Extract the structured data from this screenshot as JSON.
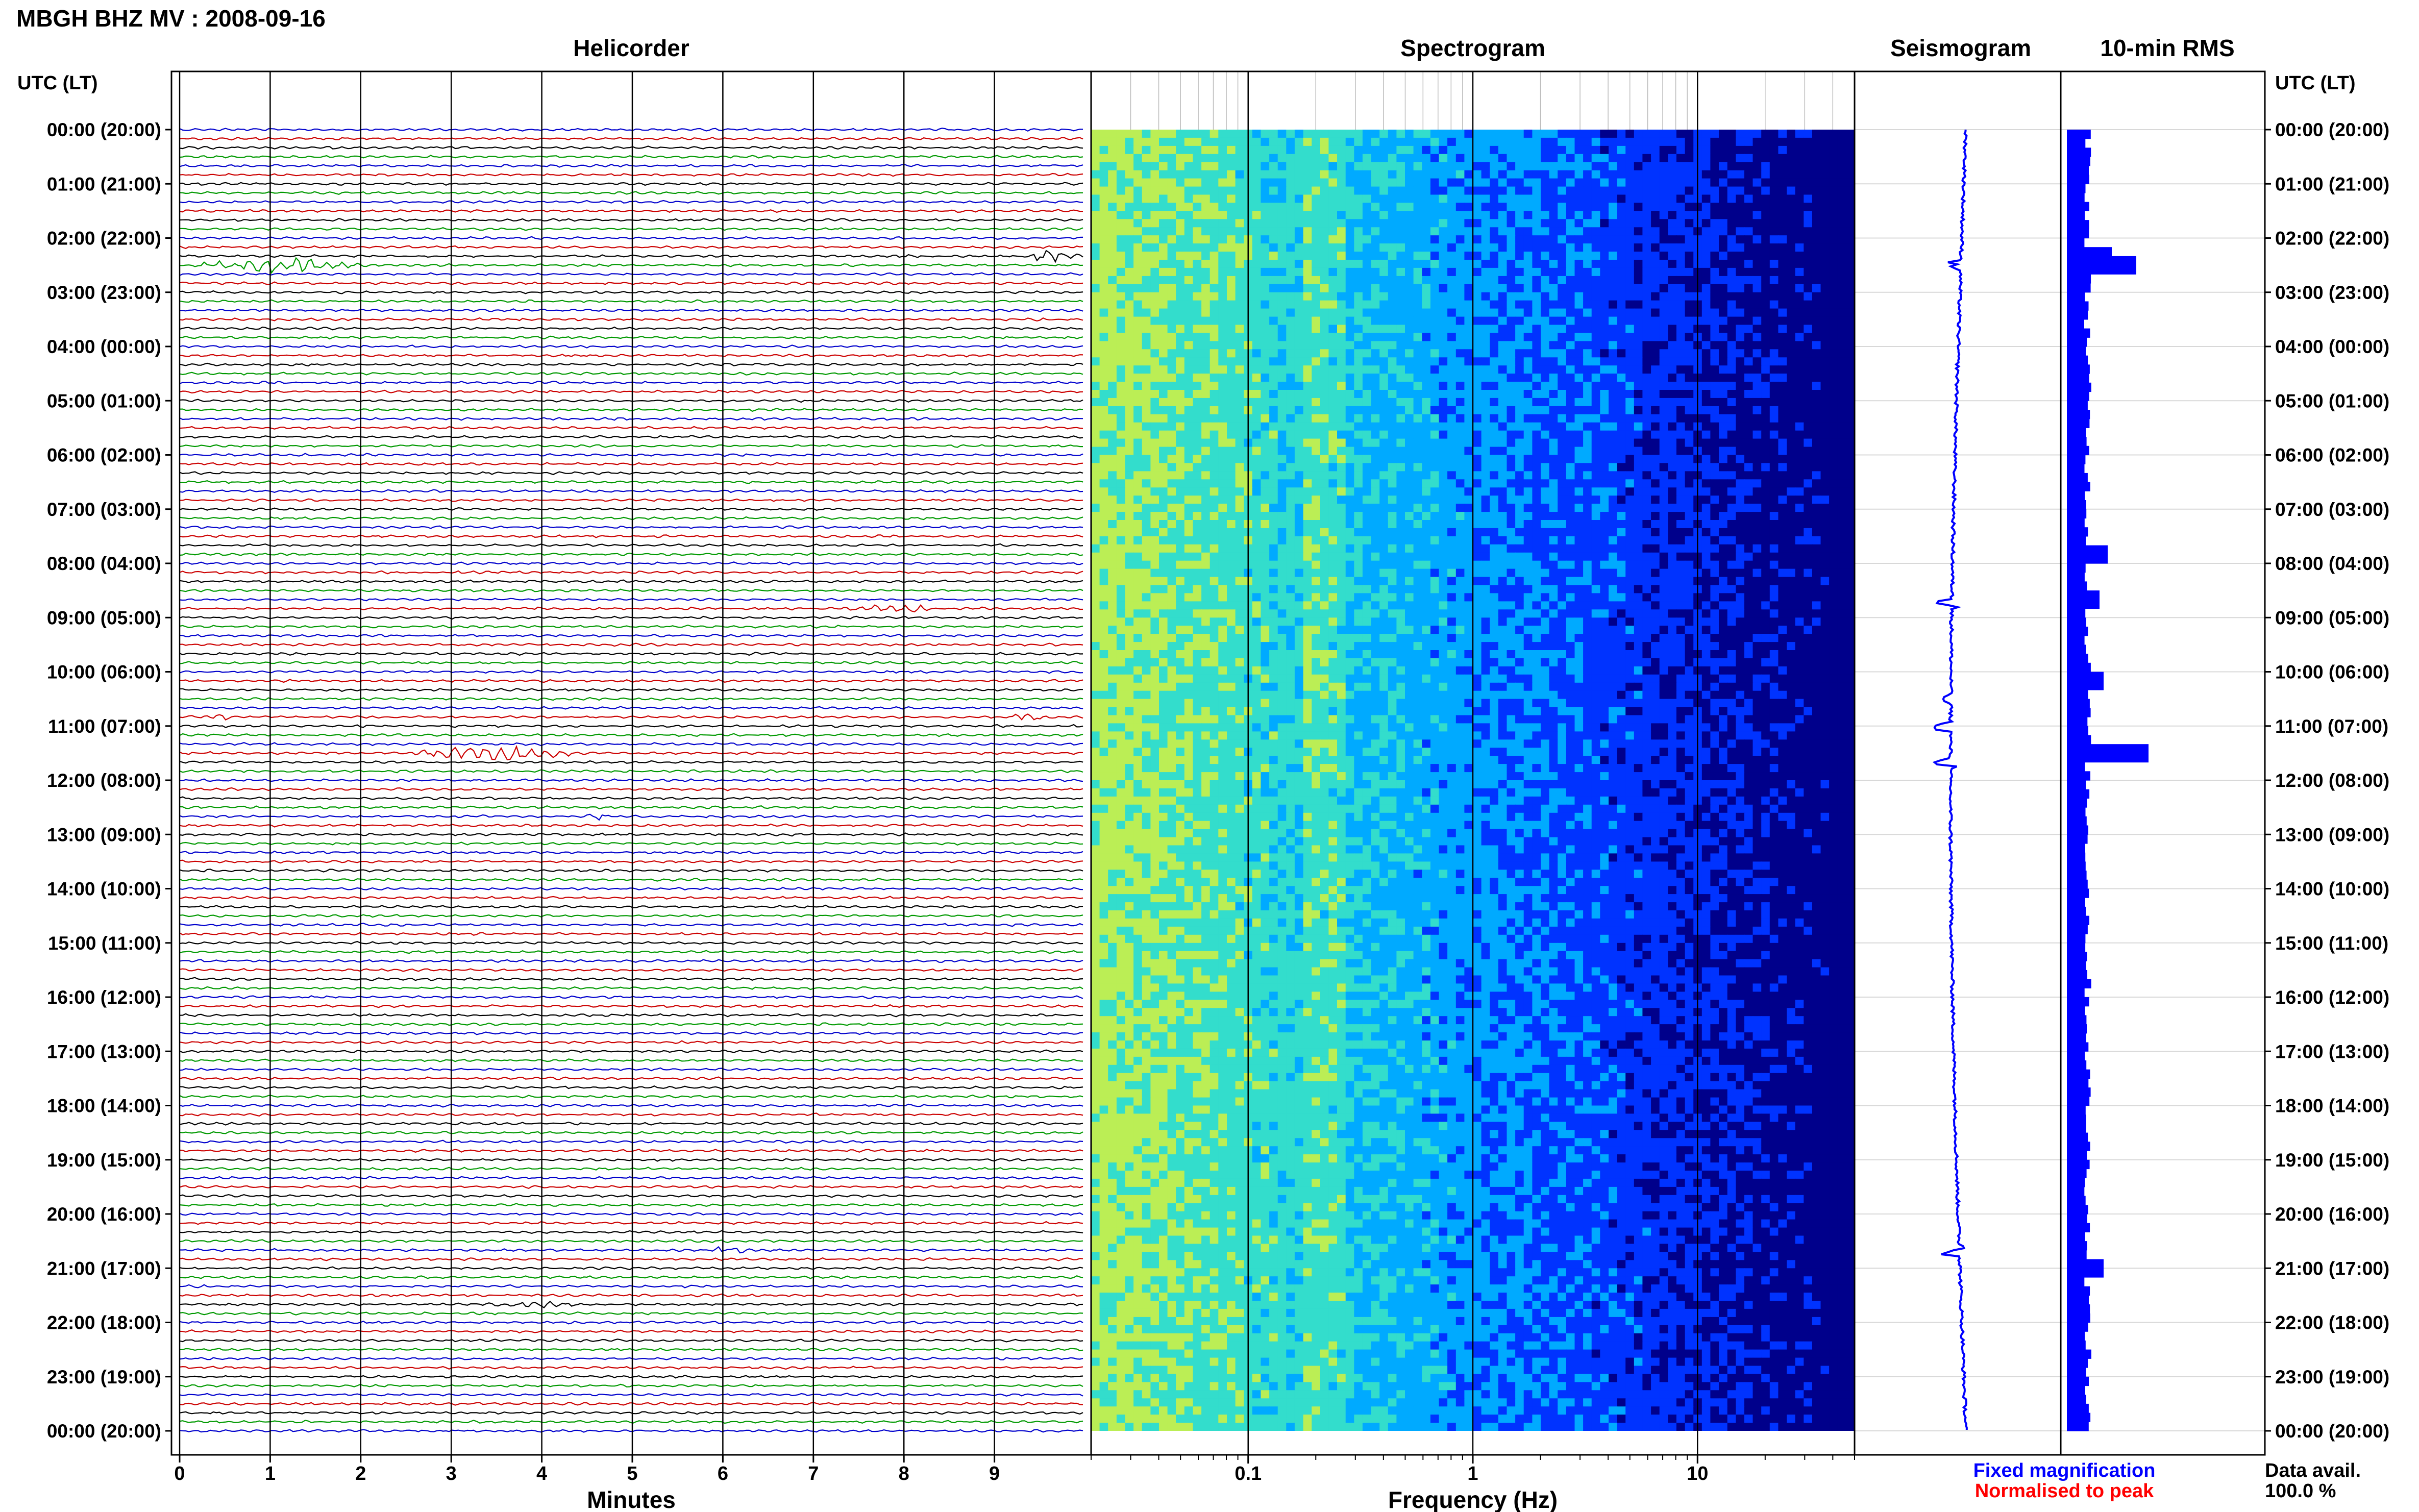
{
  "header": {
    "title": "MBGH BHZ MV : 2008-09-16"
  },
  "axis": {
    "time_label_left": "UTC (LT)",
    "time_label_right": "UTC (LT)",
    "time_ticks": [
      "00:00 (20:00)",
      "01:00 (21:00)",
      "02:00 (22:00)",
      "03:00 (23:00)",
      "04:00 (00:00)",
      "05:00 (01:00)",
      "06:00 (02:00)",
      "07:00 (03:00)",
      "08:00 (04:00)",
      "09:00 (05:00)",
      "10:00 (06:00)",
      "11:00 (07:00)",
      "12:00 (08:00)",
      "13:00 (09:00)",
      "14:00 (10:00)",
      "15:00 (11:00)",
      "16:00 (12:00)",
      "17:00 (13:00)",
      "18:00 (14:00)",
      "19:00 (15:00)",
      "20:00 (16:00)",
      "21:00 (17:00)",
      "22:00 (18:00)",
      "23:00 (19:00)",
      "00:00 (20:00)"
    ]
  },
  "footer": {
    "legend_fixed": "Fixed magnification",
    "legend_normalised": "Normalised to peak",
    "data_avail_label": "Data avail.",
    "data_avail_value": "100.0 %"
  },
  "colors": {
    "helicorder_traces": [
      "#0000cc",
      "#cc0000",
      "#000000",
      "#009900"
    ],
    "seismogram": "#0000ff",
    "rms": "#0000ff",
    "legend_fixed": "#0000ff",
    "legend_normalised": "#ff0000"
  },
  "chart_data": [
    {
      "type": "line",
      "title": "Helicorder",
      "xlabel": "Minutes",
      "xlim": [
        0,
        10
      ],
      "x_ticks": [
        "0",
        "1",
        "2",
        "3",
        "4",
        "5",
        "6",
        "7",
        "8",
        "9"
      ],
      "rows": 144,
      "minutes_per_row": 10,
      "events": [
        {
          "time_utc": "02:30",
          "minute_start": 0.0,
          "minute_end": 2.2,
          "amplitude": 0.6
        },
        {
          "time_utc": "02:20",
          "minute_start": 9.2,
          "minute_end": 10.0,
          "amplitude": 0.5
        },
        {
          "time_utc": "08:50",
          "minute_start": 7.3,
          "minute_end": 8.5,
          "amplitude": 0.3
        },
        {
          "time_utc": "10:50",
          "minute_start": 0.0,
          "minute_end": 0.8,
          "amplitude": 0.3
        },
        {
          "time_utc": "10:50",
          "minute_start": 9.1,
          "minute_end": 9.6,
          "amplitude": 0.4
        },
        {
          "time_utc": "11:30",
          "minute_start": 2.5,
          "minute_end": 4.5,
          "amplitude": 0.8
        },
        {
          "time_utc": "12:40",
          "minute_start": 4.4,
          "minute_end": 4.8,
          "amplitude": 0.3
        },
        {
          "time_utc": "20:10",
          "minute_start": 8.2,
          "minute_end": 8.4,
          "amplitude": 0.3
        },
        {
          "time_utc": "20:40",
          "minute_start": 5.8,
          "minute_end": 6.4,
          "amplitude": 0.4
        },
        {
          "time_utc": "21:40",
          "minute_start": 3.4,
          "minute_end": 4.6,
          "amplitude": 0.2
        }
      ]
    },
    {
      "type": "heatmap",
      "title": "Spectrogram",
      "xlabel": "Frequency (Hz)",
      "x_scale": "log",
      "xlim": [
        0.02,
        50
      ],
      "x_ticks": [
        "0.1",
        "1",
        "10"
      ],
      "y_range_utc": [
        "00:00",
        "24:00"
      ],
      "colormap": [
        "#00008b",
        "#0033ff",
        "#00aaff",
        "#33ddcc",
        "#bbee55"
      ]
    },
    {
      "type": "line",
      "title": "Seismogram",
      "orientation": "vertical",
      "spikes_utc": [
        "02:30",
        "08:45",
        "10:30",
        "11:00",
        "11:40",
        "20:40"
      ]
    },
    {
      "type": "bar",
      "title": "10-min RMS",
      "orientation": "horizontal",
      "bins": 144,
      "baseline_level": 0.25,
      "peaks": [
        {
          "time_utc": "02:20",
          "value": 0.55
        },
        {
          "time_utc": "02:30",
          "value": 0.85
        },
        {
          "time_utc": "07:50",
          "value": 0.5
        },
        {
          "time_utc": "08:40",
          "value": 0.4
        },
        {
          "time_utc": "10:10",
          "value": 0.45
        },
        {
          "time_utc": "11:30",
          "value": 1.0
        },
        {
          "time_utc": "21:00",
          "value": 0.45
        }
      ]
    }
  ]
}
